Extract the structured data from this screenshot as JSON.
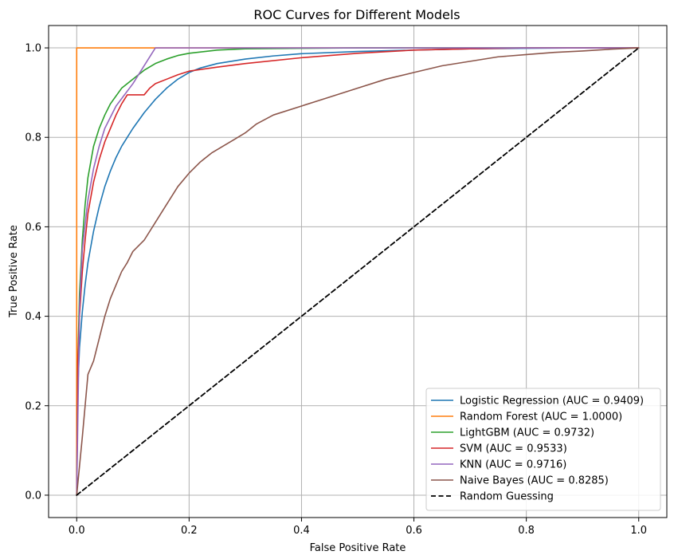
{
  "chart_data": {
    "type": "line",
    "title": "ROC Curves for Different Models",
    "xlabel": "False Positive Rate",
    "ylabel": "True Positive Rate",
    "xlim": [
      -0.05,
      1.05
    ],
    "ylim": [
      -0.05,
      1.05
    ],
    "xticks": [
      "0.0",
      "0.2",
      "0.4",
      "0.6",
      "0.8",
      "1.0"
    ],
    "yticks": [
      "0.0",
      "0.2",
      "0.4",
      "0.6",
      "0.8",
      "1.0"
    ],
    "grid": true,
    "legend_position": "lower-right",
    "series": [
      {
        "name": "Logistic Regression (AUC = 0.9409)",
        "color": "#1f77b4",
        "dashed": false,
        "x": [
          0,
          0.002,
          0.005,
          0.01,
          0.015,
          0.02,
          0.03,
          0.04,
          0.05,
          0.06,
          0.07,
          0.08,
          0.09,
          0.1,
          0.12,
          0.14,
          0.16,
          0.18,
          0.2,
          0.22,
          0.25,
          0.3,
          0.35,
          0.4,
          0.5,
          0.6,
          0.7,
          0.8,
          0.9,
          1.0
        ],
        "y": [
          0,
          0.24,
          0.33,
          0.41,
          0.47,
          0.52,
          0.59,
          0.645,
          0.69,
          0.725,
          0.755,
          0.78,
          0.8,
          0.82,
          0.855,
          0.885,
          0.91,
          0.93,
          0.945,
          0.955,
          0.965,
          0.975,
          0.982,
          0.987,
          0.992,
          0.995,
          0.998,
          0.999,
          1.0,
          1.0
        ]
      },
      {
        "name": "Random Forest (AUC = 1.0000)",
        "color": "#ff7f0e",
        "dashed": false,
        "x": [
          0,
          0,
          1.0
        ],
        "y": [
          0,
          1.0,
          1.0
        ]
      },
      {
        "name": "LightGBM (AUC = 0.9732)",
        "color": "#2ca02c",
        "dashed": false,
        "x": [
          0,
          0.002,
          0.005,
          0.01,
          0.015,
          0.02,
          0.03,
          0.04,
          0.05,
          0.06,
          0.08,
          0.1,
          0.12,
          0.14,
          0.16,
          0.18,
          0.2,
          0.25,
          0.3,
          0.4,
          0.5,
          0.7,
          1.0
        ],
        "y": [
          0,
          0.3,
          0.45,
          0.57,
          0.65,
          0.71,
          0.78,
          0.82,
          0.85,
          0.875,
          0.91,
          0.93,
          0.95,
          0.965,
          0.975,
          0.983,
          0.988,
          0.995,
          0.998,
          0.999,
          1.0,
          1.0,
          1.0
        ]
      },
      {
        "name": "SVM (AUC = 0.9533)",
        "color": "#d62728",
        "dashed": false,
        "x": [
          0,
          0.002,
          0.005,
          0.01,
          0.015,
          0.02,
          0.03,
          0.04,
          0.05,
          0.06,
          0.07,
          0.08,
          0.09,
          0.1,
          0.105,
          0.12,
          0.13,
          0.14,
          0.16,
          0.18,
          0.2,
          0.25,
          0.3,
          0.4,
          0.5,
          0.6,
          0.7,
          0.8,
          1.0
        ],
        "y": [
          0,
          0.3,
          0.4,
          0.5,
          0.57,
          0.63,
          0.7,
          0.75,
          0.79,
          0.82,
          0.85,
          0.875,
          0.895,
          0.895,
          0.895,
          0.895,
          0.91,
          0.92,
          0.93,
          0.94,
          0.948,
          0.957,
          0.965,
          0.978,
          0.988,
          0.995,
          0.998,
          1.0,
          1.0
        ]
      },
      {
        "name": "KNN (AUC = 0.9716)",
        "color": "#9467bd",
        "dashed": false,
        "x": [
          0,
          0.005,
          0.01,
          0.02,
          0.03,
          0.04,
          0.05,
          0.07,
          0.1,
          0.12,
          0.14,
          1.0
        ],
        "y": [
          0,
          0.42,
          0.55,
          0.66,
          0.73,
          0.78,
          0.82,
          0.87,
          0.92,
          0.96,
          1.0,
          1.0
        ]
      },
      {
        "name": "Naive Bayes (AUC = 0.8285)",
        "color": "#8c564b",
        "dashed": false,
        "x": [
          0,
          0.01,
          0.02,
          0.03,
          0.04,
          0.05,
          0.06,
          0.07,
          0.08,
          0.09,
          0.1,
          0.12,
          0.14,
          0.16,
          0.18,
          0.2,
          0.22,
          0.24,
          0.26,
          0.28,
          0.3,
          0.32,
          0.35,
          0.4,
          0.45,
          0.5,
          0.55,
          0.6,
          0.65,
          0.7,
          0.75,
          0.8,
          0.85,
          0.9,
          0.95,
          1.0
        ],
        "y": [
          0,
          0.13,
          0.27,
          0.3,
          0.35,
          0.4,
          0.44,
          0.47,
          0.5,
          0.52,
          0.545,
          0.57,
          0.61,
          0.65,
          0.69,
          0.72,
          0.745,
          0.765,
          0.78,
          0.795,
          0.81,
          0.83,
          0.85,
          0.87,
          0.89,
          0.91,
          0.93,
          0.945,
          0.96,
          0.97,
          0.98,
          0.985,
          0.99,
          0.993,
          0.997,
          1.0
        ]
      },
      {
        "name": "Random Guessing",
        "color": "#000000",
        "dashed": true,
        "x": [
          0,
          1
        ],
        "y": [
          0,
          1
        ]
      }
    ]
  }
}
